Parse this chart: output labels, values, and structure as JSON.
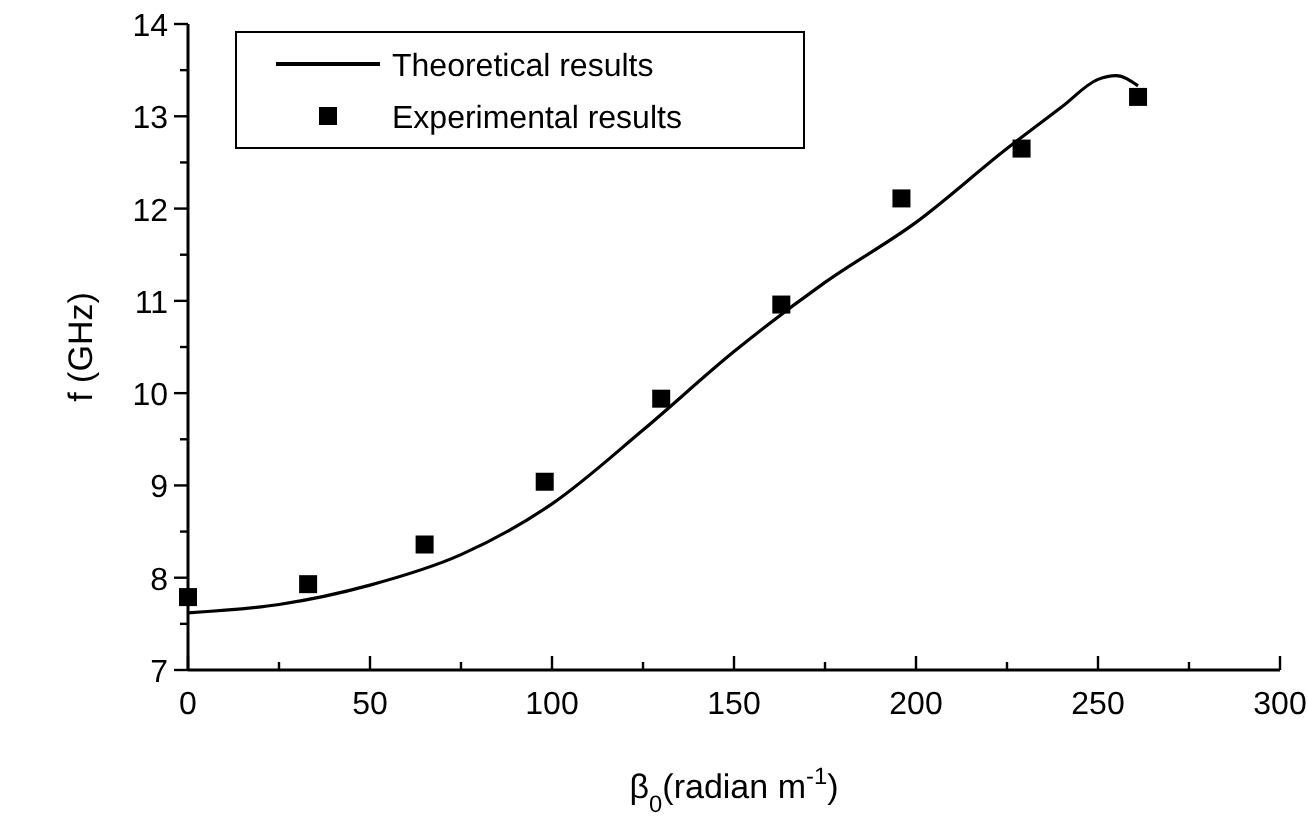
{
  "chart_data": {
    "type": "line",
    "xlabel": "β$_{0}$(radian m$^{-1}$)",
    "ylabel": "f (GHz)",
    "xlim": [
      0,
      300
    ],
    "ylim": [
      7,
      14
    ],
    "xticks": [
      0,
      {
        "value": 25,
        "label": null
      },
      50,
      {
        "value": 75,
        "label": null
      },
      100,
      {
        "value": 125,
        "label": null
      },
      150,
      {
        "value": 175,
        "label": null
      },
      200,
      {
        "value": 225,
        "label": null
      },
      250,
      {
        "value": 275,
        "label": null
      },
      300
    ],
    "yticks": [
      7,
      {
        "value": 7.5,
        "label": null
      },
      8,
      {
        "value": 8.5,
        "label": null
      },
      9,
      {
        "value": 9.5,
        "label": null
      },
      10,
      {
        "value": 10.5,
        "label": null
      },
      11,
      {
        "value": 11.5,
        "label": null
      },
      12,
      {
        "value": 12.5,
        "label": null
      },
      13,
      {
        "value": 13.5,
        "label": null
      },
      14
    ],
    "legend": "top left",
    "grid": false,
    "series": [
      {
        "name": "Theoretical results",
        "color": "#000000",
        "marker": "none",
        "line_style": "solid",
        "x": [
          0,
          25,
          50,
          75,
          100,
          125,
          150,
          175,
          200,
          225,
          240,
          250,
          255,
          261
        ],
        "values": [
          7.62,
          7.71,
          7.92,
          8.25,
          8.8,
          9.6,
          10.45,
          11.2,
          11.85,
          12.65,
          13.1,
          13.4,
          13.44,
          13.33
        ]
      },
      {
        "name": "Experimental results",
        "type": "scatter",
        "color": "#000000",
        "marker": "square",
        "x": [
          0,
          33,
          65,
          98,
          130,
          163,
          196,
          229,
          261
        ],
        "values": [
          7.79,
          7.93,
          8.36,
          9.04,
          9.94,
          10.96,
          12.11,
          12.65,
          13.21
        ]
      }
    ]
  }
}
